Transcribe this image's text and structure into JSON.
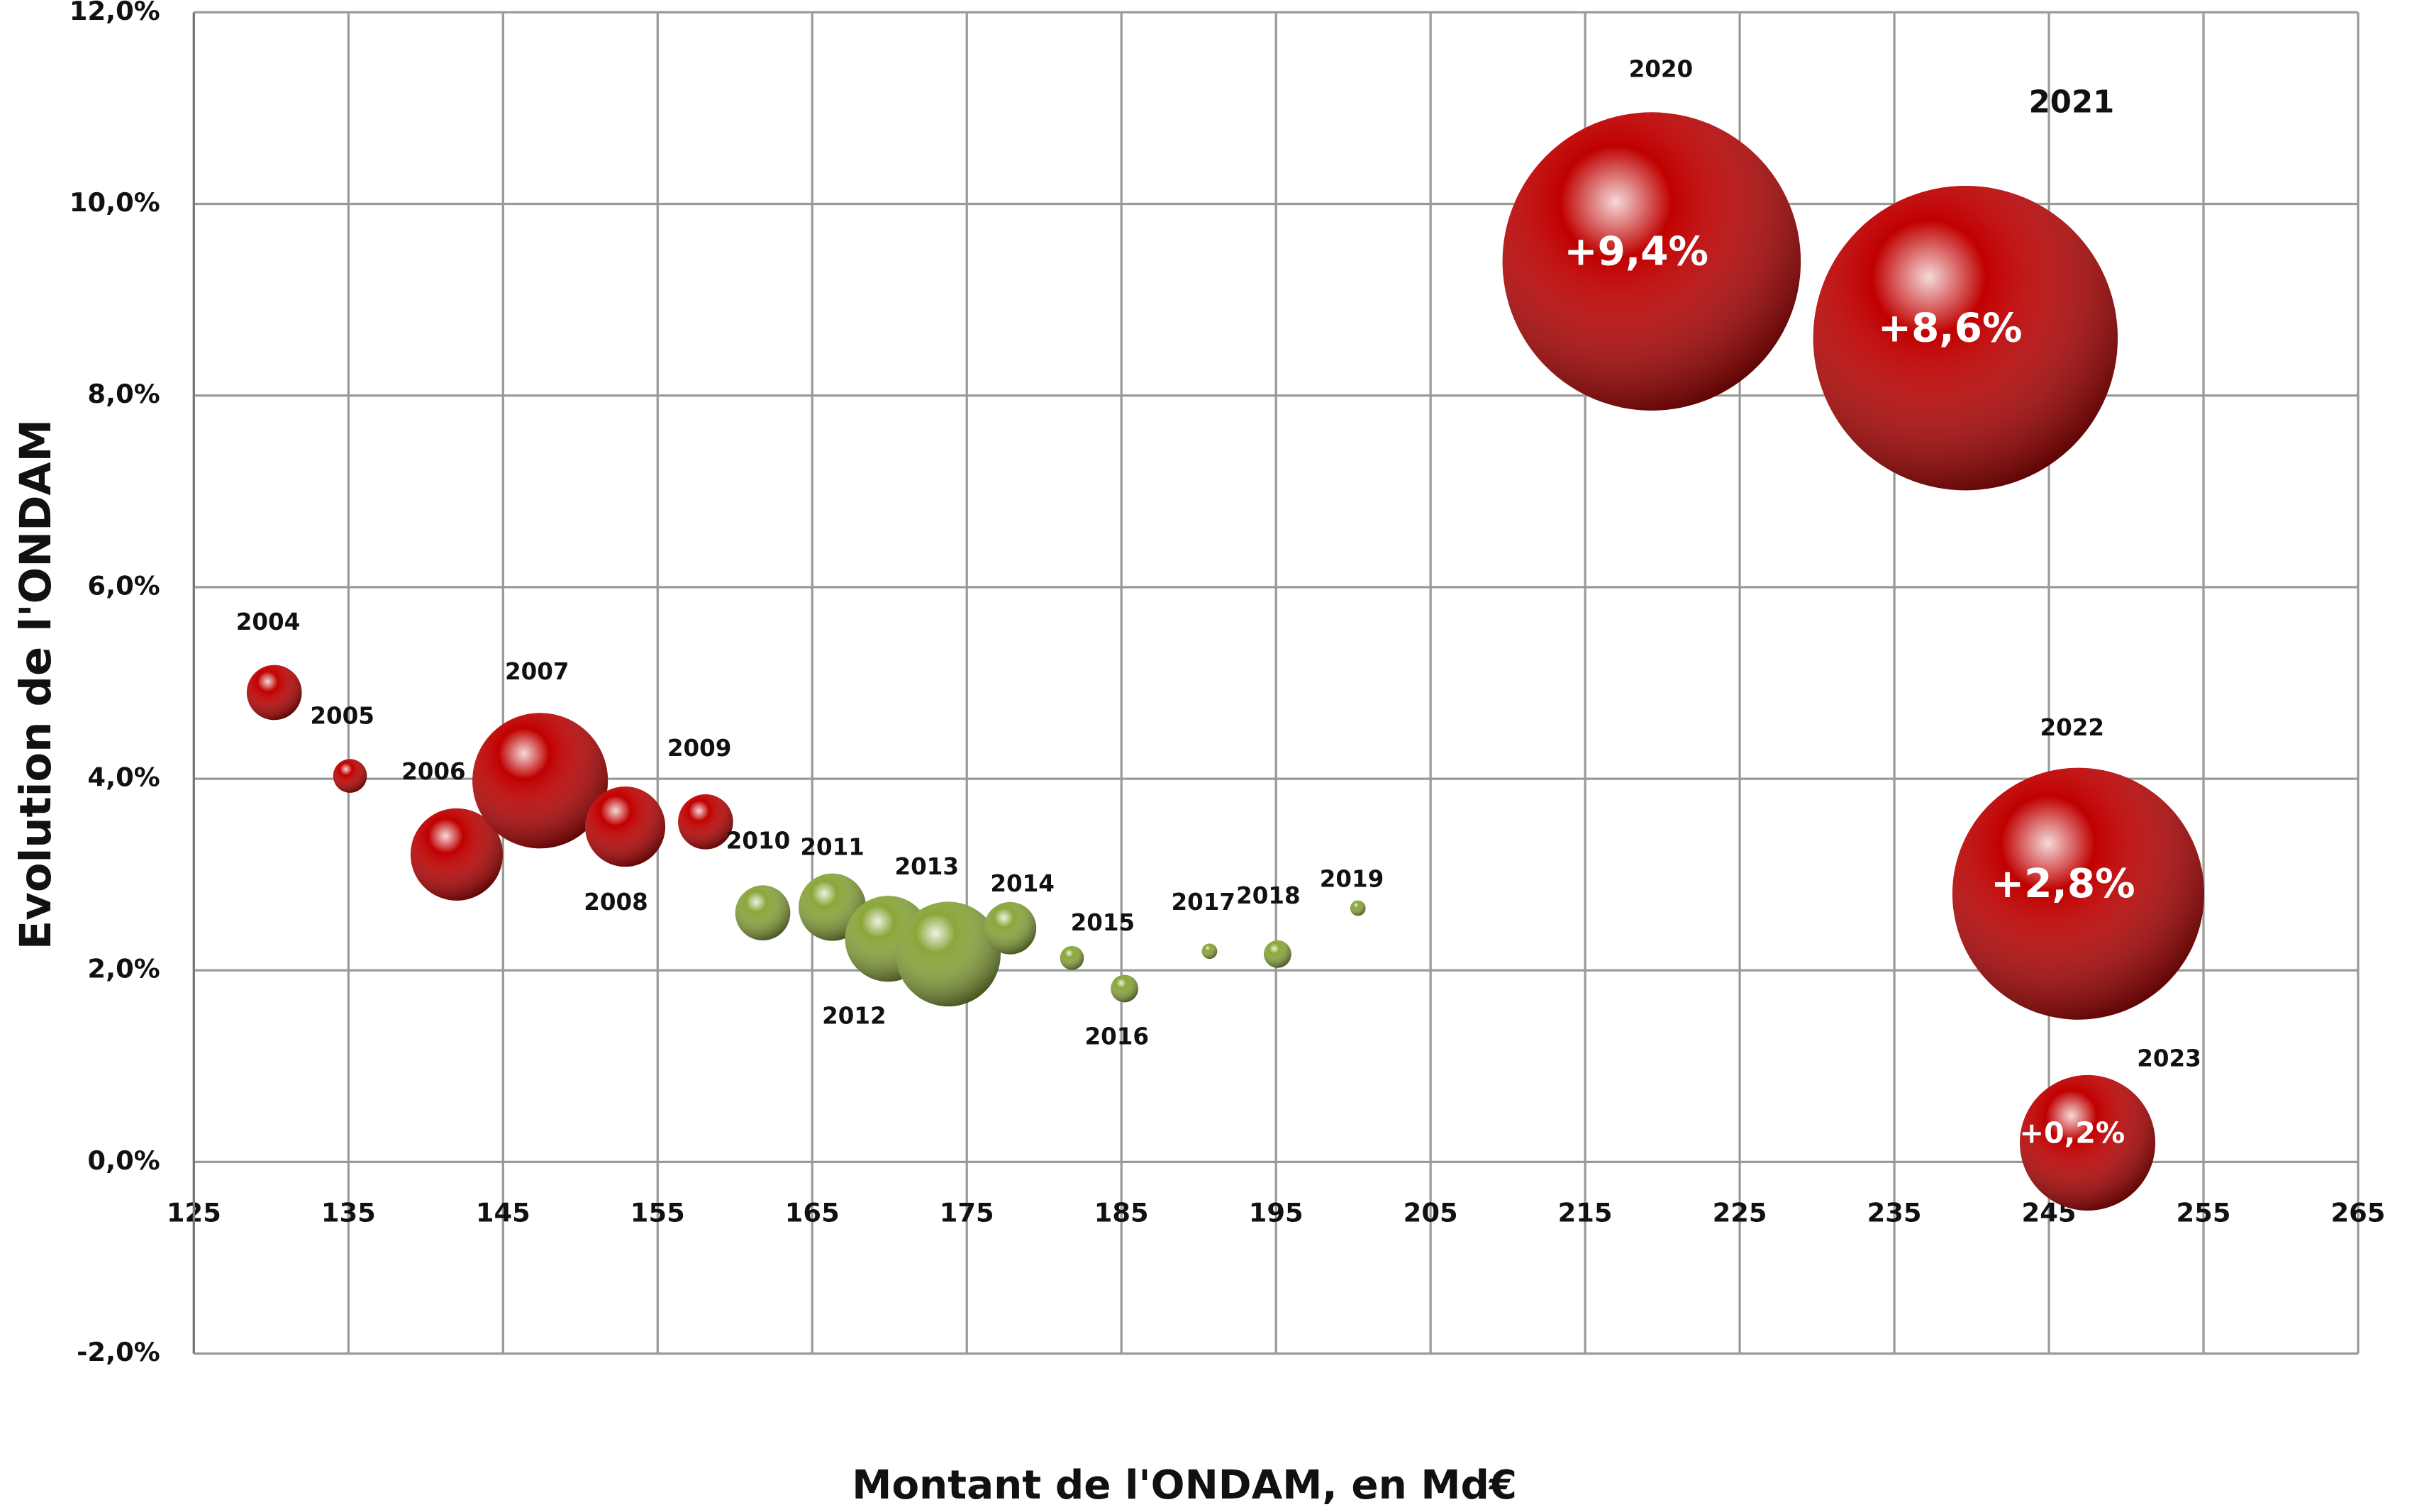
{
  "chart_data": {
    "type": "bubble",
    "xlabel": "Montant de l'ONDAM, en Md€",
    "ylabel": "Evolution de l'ONDAM",
    "labels": [
      "2004",
      "2005",
      "2006",
      "2007",
      "2008",
      "2009",
      "2010",
      "2011",
      "2012",
      "2013",
      "2014",
      "2015",
      "2016",
      "2017",
      "2018",
      "2019",
      "2020",
      "2021",
      "2022",
      "2023"
    ],
    "x": [
      130.2,
      135.1,
      142.0,
      147.4,
      152.9,
      158.1,
      161.8,
      166.3,
      169.9,
      173.8,
      177.8,
      181.8,
      185.2,
      190.7,
      195.1,
      200.3,
      219.3,
      239.6,
      246.9,
      247.5
    ],
    "values": [
      4.9,
      4.03,
      3.21,
      3.98,
      3.5,
      3.55,
      2.6,
      2.66,
      2.33,
      2.17,
      2.44,
      2.13,
      1.81,
      2.2,
      2.17,
      2.65,
      9.4,
      8.6,
      2.8,
      0.2
    ],
    "value_labels": [
      null,
      null,
      null,
      null,
      null,
      null,
      null,
      null,
      null,
      null,
      null,
      null,
      null,
      null,
      null,
      null,
      "+9,4%",
      "+8,6%",
      "+2,8%",
      "+0,2%"
    ],
    "sizes": [
      3.2,
      1.2,
      9,
      19.4,
      6.8,
      3.2,
      3.2,
      4.8,
      7.8,
      11.6,
      2.9,
      0.6,
      0.8,
      0.25,
      0.8,
      0.25,
      94,
      98,
      67,
      19.4
    ],
    "colors": [
      "#c00000",
      "#c00000",
      "#c00000",
      "#c00000",
      "#c00000",
      "#c00000",
      "#8aa63a",
      "#8aa63a",
      "#8aa63a",
      "#8aa63a",
      "#8aa63a",
      "#8aa63a",
      "#8aa63a",
      "#8aa63a",
      "#8aa63a",
      "#8aa63a",
      "#c00000",
      "#c00000",
      "#c00000",
      "#c00000"
    ],
    "xlim": [
      125,
      265
    ],
    "xticks": [
      125,
      135,
      145,
      155,
      165,
      175,
      185,
      195,
      205,
      215,
      225,
      235,
      245,
      255,
      265
    ],
    "ylim": [
      -2,
      12
    ],
    "yticks": [
      {
        "value": -2,
        "label": "-2,0%"
      },
      {
        "value": 0,
        "label": "0,0%"
      },
      {
        "value": 2,
        "label": "2,0%"
      },
      {
        "value": 4,
        "label": "4,0%"
      },
      {
        "value": 6,
        "label": "6,0%"
      },
      {
        "value": 8,
        "label": "8,0%"
      },
      {
        "value": 10,
        "label": "10,0%"
      },
      {
        "value": 12,
        "label": "12,0%"
      }
    ],
    "grid": true
  }
}
